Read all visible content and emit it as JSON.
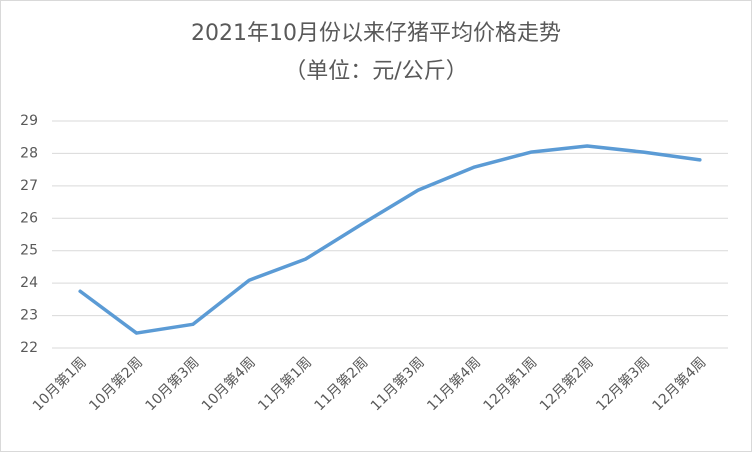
{
  "chart_data": {
    "type": "line",
    "title": "2021年10月份以来仔猪平均价格走势",
    "subtitle": "（单位：元/公斤）",
    "categories": [
      "10月第1周",
      "10月第2周",
      "10月第3周",
      "10月第4周",
      "11月第1周",
      "11月第2周",
      "11月第3周",
      "11月第4周",
      "12月第1周",
      "12月第2周",
      "12月第3周",
      "12月第4周"
    ],
    "values": [
      23.75,
      22.46,
      22.73,
      24.09,
      24.74,
      25.82,
      26.87,
      27.58,
      28.04,
      28.23,
      28.04,
      27.8
    ],
    "color": "#5b9bd5",
    "ylim": [
      22,
      29
    ],
    "yticks": [
      22,
      23,
      24,
      25,
      26,
      27,
      28,
      29
    ],
    "grid": true
  }
}
